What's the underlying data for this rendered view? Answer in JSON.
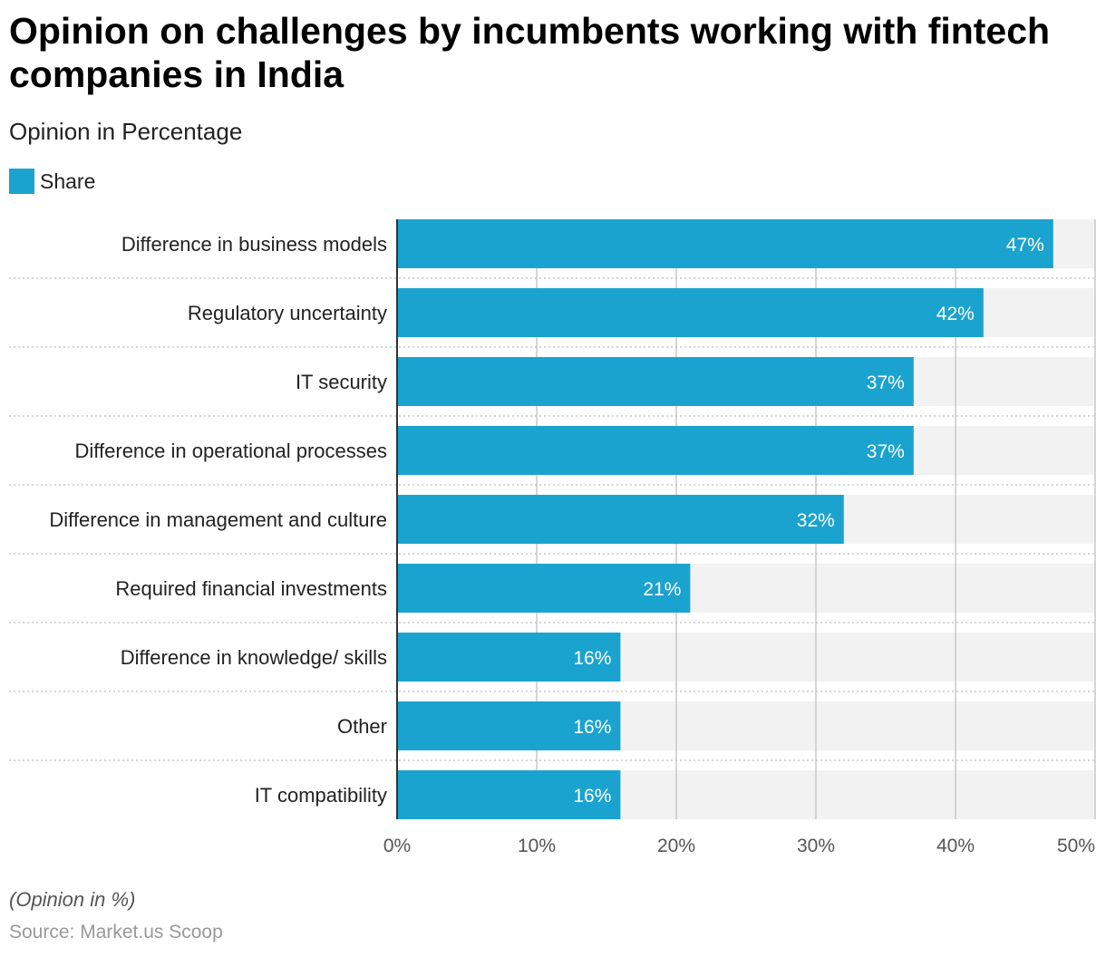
{
  "title": "Opinion on challenges by incumbents working with fintech companies in India",
  "subtitle": "Opinion in Percentage",
  "note": "(Opinion in %)",
  "source": "Source: Market.us Scoop",
  "colors": {
    "bar": "#1aa3cf",
    "track": "#f2f2f2",
    "grid": "#c8c8c8",
    "separator": "#bdbdbd",
    "axis": "#333333",
    "tick_text": "#555555",
    "label_text": "#222222",
    "value_text": "#ffffff"
  },
  "chart_data": {
    "type": "bar",
    "orientation": "horizontal",
    "categories": [
      "Difference in business models",
      "Regulatory uncertainty",
      "IT security",
      "Difference in operational processes",
      "Difference in management and culture",
      "Required financial investments",
      "Difference in knowledge/ skills",
      "Other",
      "IT compatibility"
    ],
    "series": [
      {
        "name": "Share",
        "values": [
          47,
          42,
          37,
          37,
          32,
          21,
          16,
          16,
          16
        ],
        "value_labels": [
          "47%",
          "42%",
          "37%",
          "37%",
          "32%",
          "21%",
          "16%",
          "16%",
          "16%"
        ]
      }
    ],
    "xlim": [
      0,
      50
    ],
    "xticks": [
      0,
      10,
      20,
      30,
      40,
      50
    ],
    "xtick_labels": [
      "0%",
      "10%",
      "20%",
      "30%",
      "40%",
      "50%"
    ],
    "grid": true,
    "legend_position": "top-left"
  }
}
